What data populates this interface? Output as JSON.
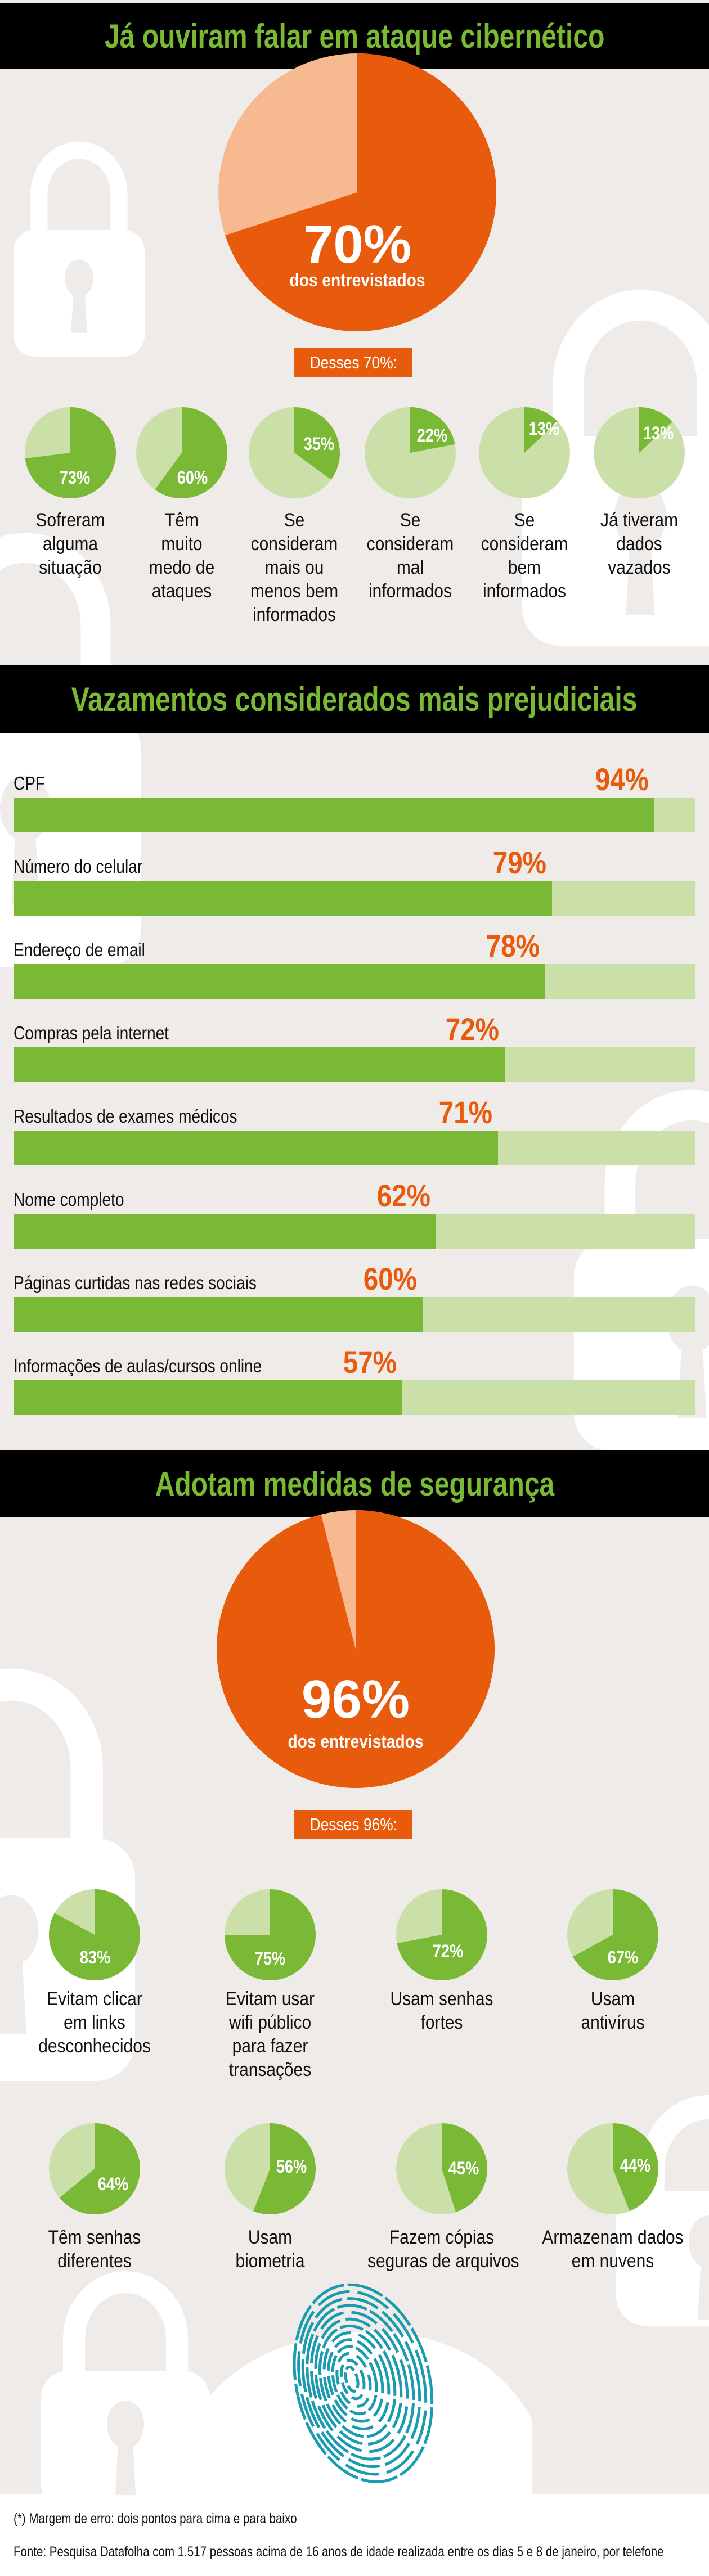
{
  "colors": {
    "background": "#efebe8",
    "header": "#000000",
    "title_green": "#7ab934",
    "orange": "#e95b0c",
    "light_orange": "#f7b990",
    "green": "#79b935",
    "light_green": "#cbe0a9",
    "fingerprint": "#1a9bb0"
  },
  "section1": {
    "title": "Já ouviram falar em ataque cibernético",
    "main_pie": {
      "value": 70,
      "value_label": "70%",
      "caption": "dos entrevistados"
    },
    "subheading": "Desses 70%:",
    "items": [
      {
        "value": 73,
        "value_label": "73%",
        "lines": [
          "Sofreram",
          "alguma",
          "situação"
        ]
      },
      {
        "value": 60,
        "value_label": "60%",
        "lines": [
          "Têm",
          "muito",
          "medo de",
          "ataques"
        ]
      },
      {
        "value": 35,
        "value_label": "35%",
        "lines": [
          "Se",
          "consideram",
          "mais ou",
          "menos bem",
          "informados"
        ]
      },
      {
        "value": 22,
        "value_label": "22%",
        "lines": [
          "Se",
          "consideram",
          "mal",
          "informados"
        ]
      },
      {
        "value": 13,
        "value_label": "13%",
        "lines": [
          "Se",
          "consideram",
          "bem",
          "informados"
        ]
      },
      {
        "value": 13,
        "value_label": "13%",
        "lines": [
          "Já tiveram",
          "dados",
          "vazados"
        ]
      }
    ]
  },
  "section2": {
    "title": "Vazamentos considerados mais prejudiciais",
    "bars": [
      {
        "label": "CPF",
        "value": 94,
        "value_label": "94%"
      },
      {
        "label": "Número do celular",
        "value": 79,
        "value_label": "79%"
      },
      {
        "label": "Endereço de email",
        "value": 78,
        "value_label": "78%"
      },
      {
        "label": "Compras pela internet",
        "value": 72,
        "value_label": "72%"
      },
      {
        "label": "Resultados de exames médicos",
        "value": 71,
        "value_label": "71%"
      },
      {
        "label": "Nome completo",
        "value": 62,
        "value_label": "62%"
      },
      {
        "label": "Páginas curtidas nas redes sociais",
        "value": 60,
        "value_label": "60%"
      },
      {
        "label": "Informações de aulas/cursos online",
        "value": 57,
        "value_label": "57%"
      }
    ]
  },
  "section3": {
    "title": "Adotam medidas de segurança",
    "main_pie": {
      "value": 96,
      "value_label": "96%",
      "caption": "dos entrevistados"
    },
    "subheading": "Desses 96%:",
    "items": [
      {
        "value": 83,
        "value_label": "83%",
        "lines": [
          "Evitam clicar",
          "em links",
          "desconhecidos"
        ]
      },
      {
        "value": 75,
        "value_label": "75%",
        "lines": [
          "Evitam usar",
          "wifi público",
          "para fazer",
          "transações"
        ]
      },
      {
        "value": 72,
        "value_label": "72%",
        "lines": [
          "Usam senhas",
          "fortes"
        ]
      },
      {
        "value": 67,
        "value_label": "67%",
        "lines": [
          "Usam",
          "antivírus"
        ]
      },
      {
        "value": 64,
        "value_label": "64%",
        "lines": [
          "Têm senhas",
          "diferentes"
        ]
      },
      {
        "value": 56,
        "value_label": "56%",
        "lines": [
          "Usam",
          "biometria"
        ]
      },
      {
        "value": 45,
        "value_label": "45%",
        "lines": [
          "Fazem cópias",
          "seguras de arquivos"
        ]
      },
      {
        "value": 44,
        "value_label": "44%",
        "lines": [
          "Armazenam dados",
          "em nuvens"
        ]
      }
    ]
  },
  "footer": {
    "note": "(*) Margem de erro: dois pontos para cima e para baixo",
    "source": "Fonte: Pesquisa Datafolha com 1.517 pessoas acima de 16 anos de idade realizada entre os dias 5 e 8 de janeiro, por telefone"
  }
}
